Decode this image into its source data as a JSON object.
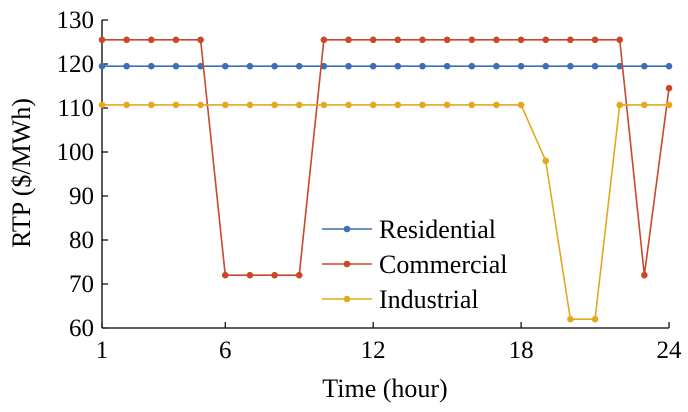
{
  "chart_data": {
    "type": "line",
    "xlabel": "Time (hour)",
    "ylabel": "RTP ($/MWh)",
    "xlim": [
      1,
      24
    ],
    "ylim": [
      60,
      130
    ],
    "xticks": [
      1,
      6,
      12,
      18,
      24
    ],
    "yticks": [
      60,
      70,
      80,
      90,
      100,
      110,
      120,
      130
    ],
    "grid": false,
    "legend_position": "center-bottom",
    "x": [
      1,
      2,
      3,
      4,
      5,
      6,
      7,
      8,
      9,
      10,
      11,
      12,
      13,
      14,
      15,
      16,
      17,
      18,
      19,
      20,
      21,
      22,
      23,
      24
    ],
    "series": [
      {
        "name": "Residential",
        "color": "#3b6fb6",
        "values": [
          119.5,
          119.5,
          119.5,
          119.5,
          119.5,
          119.5,
          119.5,
          119.5,
          119.5,
          119.5,
          119.5,
          119.5,
          119.5,
          119.5,
          119.5,
          119.5,
          119.5,
          119.5,
          119.5,
          119.5,
          119.5,
          119.5,
          119.5,
          119.5
        ]
      },
      {
        "name": "Commercial",
        "color": "#c9472a",
        "values": [
          125.5,
          125.5,
          125.5,
          125.5,
          125.5,
          72,
          72,
          72,
          72,
          125.5,
          125.5,
          125.5,
          125.5,
          125.5,
          125.5,
          125.5,
          125.5,
          125.5,
          125.5,
          125.5,
          125.5,
          125.5,
          72,
          114.5
        ]
      },
      {
        "name": "Industrial",
        "color": "#e3a81f",
        "values": [
          110.7,
          110.7,
          110.7,
          110.7,
          110.7,
          110.7,
          110.7,
          110.7,
          110.7,
          110.7,
          110.7,
          110.7,
          110.7,
          110.7,
          110.7,
          110.7,
          110.7,
          110.7,
          98,
          62,
          62,
          110.7,
          110.7,
          110.7
        ]
      }
    ]
  }
}
